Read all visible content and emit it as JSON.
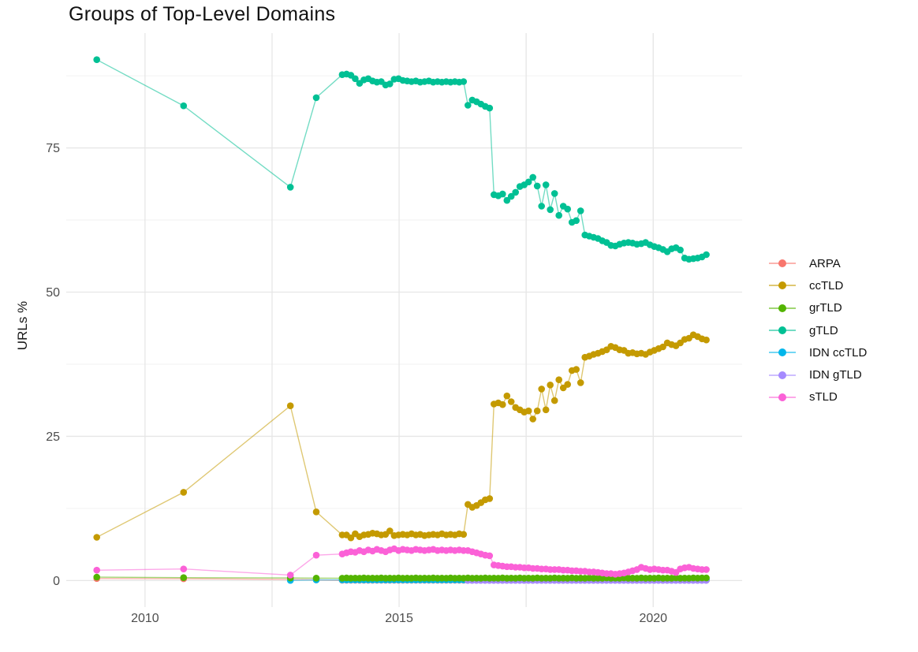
{
  "chart_data": {
    "type": "line",
    "title": "Groups of Top-Level Domains",
    "xlabel": "",
    "ylabel": "URLs %",
    "legend_position": "right",
    "grid": true,
    "background": "#ffffff",
    "major_grid_color": "#e6e6e6",
    "minor_grid_color": "#f2f2f2",
    "tick_label_color": "#4d4d4d",
    "xlim": [
      2008.45,
      2021.75
    ],
    "ylim": [
      -4.6,
      94.9
    ],
    "x_ticks": [
      {
        "year": 2010,
        "label": "2010"
      },
      {
        "year": 2012.5,
        "label": ""
      },
      {
        "year": 2015,
        "label": "2015"
      },
      {
        "year": 2017.5,
        "label": ""
      },
      {
        "year": 2020,
        "label": "2020"
      }
    ],
    "y_ticks": [
      {
        "value": 0,
        "label": "0"
      },
      {
        "value": 25,
        "label": "25"
      },
      {
        "value": 50,
        "label": "50"
      },
      {
        "value": 75,
        "label": "75"
      }
    ],
    "y_minor": [
      12.5,
      37.5,
      62.5,
      87.5
    ],
    "draw_order": [
      "ARPA",
      "IDN ccTLD",
      "IDN gTLD",
      "grTLD",
      "sTLD",
      "ccTLD",
      "gTLD"
    ],
    "series": [
      {
        "name": "ARPA",
        "color": "#F8766D",
        "pre": [
          [
            2009.05,
            0.35
          ],
          [
            2010.76,
            0.3
          ],
          [
            2012.86,
            0.2
          ],
          [
            2013.37,
            0.12
          ]
        ],
        "start": 2013.88,
        "step": 0.0853,
        "values": [
          0.05,
          0.05,
          0.05,
          0.05,
          0.05,
          0.05,
          0.05,
          0.05,
          0.05,
          0.05,
          0.05,
          0.05,
          0.05,
          0.05,
          0.05,
          0.05,
          0.05,
          0.05,
          0.05,
          0.05,
          0.05,
          0.05,
          0.05,
          0.05,
          0.05,
          0.05,
          0.05,
          0.05,
          0.05,
          0.05,
          0.05,
          0.05,
          0.05,
          0.05,
          0.05,
          0.05,
          0.05,
          0.05,
          0.05,
          0.05,
          0.05,
          0.05,
          0.05,
          0.05,
          0.05,
          0.05,
          0.05,
          0.05,
          0.05,
          0.05,
          0.05,
          0.05,
          0.05,
          0.05,
          0.05,
          0.05,
          0.05,
          0.05,
          0.05,
          0.05,
          0.05,
          0.05,
          0.05,
          0.05,
          0.05,
          0.05,
          0.05,
          0.05,
          0.05,
          0.05,
          0.05,
          0.05,
          0.05,
          0.05,
          0.05,
          0.05,
          0.05,
          0.05,
          0.05,
          0.05,
          0.05,
          0.05,
          0.05,
          0.05,
          0.05
        ]
      },
      {
        "name": "ccTLD",
        "color": "#C49A00",
        "pre": [
          [
            2009.05,
            7.5
          ],
          [
            2010.76,
            15.3
          ],
          [
            2012.86,
            30.3
          ],
          [
            2013.37,
            11.9
          ]
        ],
        "start": 2013.88,
        "step": 0.0853,
        "values": [
          7.9,
          7.9,
          7.4,
          8.1,
          7.6,
          7.9,
          8.0,
          8.2,
          8.1,
          7.9,
          8.0,
          8.6,
          7.8,
          7.9,
          8.0,
          7.9,
          8.1,
          7.9,
          8.0,
          7.8,
          7.9,
          8.0,
          7.9,
          8.1,
          7.9,
          8.0,
          7.9,
          8.1,
          8.0,
          13.2,
          12.7,
          13.0,
          13.5,
          14.0,
          14.2,
          30.6,
          30.8,
          30.5,
          32.0,
          31.0,
          30.0,
          29.6,
          29.2,
          29.4,
          28.0,
          29.4,
          33.2,
          29.6,
          33.9,
          31.2,
          34.8,
          33.4,
          34.0,
          36.4,
          36.6,
          34.3,
          38.7,
          38.9,
          39.2,
          39.4,
          39.7,
          40.0,
          40.6,
          40.4,
          40.0,
          39.9,
          39.4,
          39.5,
          39.3,
          39.4,
          39.2,
          39.6,
          39.9,
          40.2,
          40.5,
          41.2,
          40.9,
          40.7,
          41.2,
          41.8,
          42.0,
          42.6,
          42.3,
          41.9,
          41.7
        ]
      },
      {
        "name": "grTLD",
        "color": "#53B400",
        "pre": [
          [
            2009.05,
            0.6
          ],
          [
            2010.76,
            0.5
          ],
          [
            2012.86,
            0.45
          ],
          [
            2013.37,
            0.42
          ]
        ],
        "start": 2013.88,
        "step": 0.0853,
        "values": [
          0.4,
          0.45,
          0.4,
          0.42,
          0.4,
          0.45,
          0.4,
          0.42,
          0.4,
          0.45,
          0.4,
          0.42,
          0.4,
          0.45,
          0.4,
          0.42,
          0.4,
          0.45,
          0.4,
          0.42,
          0.4,
          0.45,
          0.4,
          0.42,
          0.4,
          0.45,
          0.4,
          0.42,
          0.4,
          0.45,
          0.4,
          0.42,
          0.4,
          0.45,
          0.4,
          0.42,
          0.4,
          0.45,
          0.4,
          0.42,
          0.4,
          0.45,
          0.4,
          0.42,
          0.4,
          0.45,
          0.4,
          0.42,
          0.4,
          0.45,
          0.4,
          0.42,
          0.4,
          0.45,
          0.4,
          0.42,
          0.4,
          0.45,
          0.4,
          0.42,
          0.4,
          0.45,
          0.4,
          0.42,
          0.4,
          0.45,
          0.4,
          0.42,
          0.4,
          0.45,
          0.4,
          0.42,
          0.4,
          0.45,
          0.4,
          0.42,
          0.4,
          0.45,
          0.4,
          0.42,
          0.4,
          0.45,
          0.42,
          0.45,
          0.45
        ]
      },
      {
        "name": "gTLD",
        "color": "#00C094",
        "pre": [
          [
            2009.05,
            90.3
          ],
          [
            2010.76,
            82.3
          ],
          [
            2012.86,
            68.2
          ],
          [
            2013.37,
            83.7
          ]
        ],
        "start": 2013.88,
        "step": 0.0853,
        "values": [
          87.7,
          87.8,
          87.6,
          87.0,
          86.2,
          86.8,
          87.0,
          86.6,
          86.4,
          86.5,
          85.9,
          86.1,
          86.9,
          87.0,
          86.7,
          86.6,
          86.5,
          86.6,
          86.4,
          86.5,
          86.6,
          86.4,
          86.5,
          86.4,
          86.5,
          86.4,
          86.5,
          86.4,
          86.5,
          82.4,
          83.3,
          83.0,
          82.6,
          82.2,
          81.9,
          66.9,
          66.7,
          67.0,
          65.9,
          66.6,
          67.3,
          68.3,
          68.6,
          69.1,
          69.9,
          68.4,
          64.9,
          68.6,
          64.3,
          67.1,
          63.3,
          64.9,
          64.4,
          62.1,
          62.4,
          64.1,
          59.9,
          59.7,
          59.5,
          59.3,
          58.9,
          58.6,
          58.1,
          58.0,
          58.3,
          58.5,
          58.6,
          58.5,
          58.3,
          58.4,
          58.6,
          58.2,
          57.9,
          57.7,
          57.4,
          57.0,
          57.5,
          57.7,
          57.3,
          55.9,
          55.7,
          55.8,
          55.9,
          56.1,
          56.5
        ]
      },
      {
        "name": "IDN ccTLD",
        "color": "#00B6EB",
        "pre": [
          [
            2012.86,
            0.02
          ],
          [
            2013.37,
            0.1
          ]
        ],
        "start": 2013.88,
        "step": 0.0853,
        "values": [
          0.1,
          0.1,
          0.1,
          0.1,
          0.1,
          0.1,
          0.1,
          0.1,
          0.1,
          0.1,
          0.1,
          0.1,
          0.1,
          0.1,
          0.1,
          0.1,
          0.1,
          0.1,
          0.1,
          0.1,
          0.1,
          0.1,
          0.1,
          0.1,
          0.1,
          0.1,
          0.1,
          0.1,
          0.1,
          0.1,
          0.1,
          0.1,
          0.1,
          0.1,
          0.1,
          0.1,
          0.1,
          0.1,
          0.1,
          0.1,
          0.1,
          0.1,
          0.1,
          0.1,
          0.1,
          0.1,
          0.1,
          0.1,
          0.1,
          0.1,
          0.1,
          0.1,
          0.1,
          0.1,
          0.1,
          0.1,
          0.1,
          0.1,
          0.1,
          0.1,
          0.1,
          0.1,
          0.1,
          0.1,
          0.1,
          0.1,
          0.1,
          0.1,
          0.1,
          0.1,
          0.1,
          0.1,
          0.1,
          0.1,
          0.1,
          0.1,
          0.1,
          0.1,
          0.1,
          0.1,
          0.1,
          0.1,
          0.1,
          0.1,
          0.1
        ]
      },
      {
        "name": "IDN gTLD",
        "color": "#A58AFF",
        "pre": [],
        "start": 2016.35,
        "step": 0.0853,
        "values": [
          0.02,
          0.02,
          0.02,
          0.02,
          0.02,
          0.02,
          0.02,
          0.02,
          0.02,
          0.02,
          0.02,
          0.02,
          0.02,
          0.02,
          0.02,
          0.02,
          0.02,
          0.02,
          0.02,
          0.02,
          0.02,
          0.02,
          0.02,
          0.02,
          0.02,
          0.02,
          0.02,
          0.02,
          0.02,
          0.02,
          0.02,
          0.02,
          0.02,
          0.02,
          0.02,
          0.02,
          0.02,
          0.02,
          0.02,
          0.02,
          0.02,
          0.02,
          0.02,
          0.02,
          0.02,
          0.02,
          0.02,
          0.02,
          0.02,
          0.02,
          0.02,
          0.02,
          0.02,
          0.02,
          0.02,
          0.02
        ]
      },
      {
        "name": "sTLD",
        "color": "#FB61D7",
        "pre": [
          [
            2009.05,
            1.8
          ],
          [
            2010.76,
            2.0
          ],
          [
            2012.86,
            0.95
          ],
          [
            2013.37,
            4.4
          ]
        ],
        "start": 2013.88,
        "step": 0.0853,
        "values": [
          4.6,
          4.8,
          5.0,
          4.9,
          5.2,
          5.0,
          5.3,
          5.1,
          5.4,
          5.2,
          5.0,
          5.3,
          5.5,
          5.2,
          5.4,
          5.3,
          5.2,
          5.4,
          5.3,
          5.2,
          5.3,
          5.4,
          5.2,
          5.3,
          5.2,
          5.3,
          5.2,
          5.3,
          5.2,
          5.2,
          5.0,
          4.8,
          4.6,
          4.4,
          4.3,
          2.7,
          2.6,
          2.5,
          2.4,
          2.4,
          2.3,
          2.3,
          2.2,
          2.2,
          2.1,
          2.1,
          2.0,
          2.0,
          1.9,
          1.9,
          1.9,
          1.8,
          1.8,
          1.7,
          1.7,
          1.6,
          1.6,
          1.5,
          1.5,
          1.4,
          1.3,
          1.2,
          1.2,
          1.1,
          1.2,
          1.3,
          1.5,
          1.7,
          1.9,
          2.3,
          2.1,
          1.9,
          2.0,
          1.9,
          1.8,
          1.8,
          1.6,
          1.4,
          2.0,
          2.2,
          2.3,
          2.1,
          2.0,
          1.9,
          1.9
        ]
      }
    ]
  }
}
